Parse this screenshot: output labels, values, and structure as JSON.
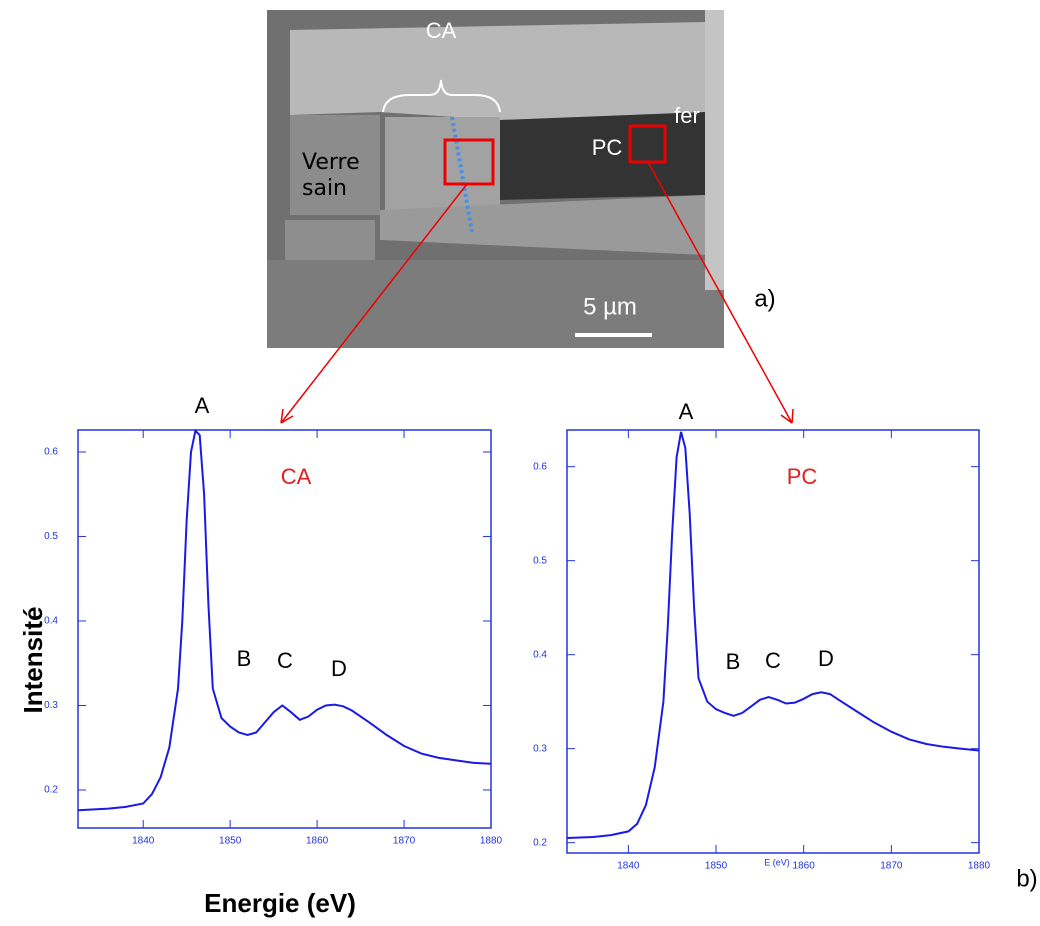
{
  "image": {
    "labels": [
      "CA",
      "Verre sain",
      "PC",
      "fer"
    ],
    "scale_bar": "5 µm"
  },
  "figure": {
    "ylabel": "Intensité",
    "xlabel": "Energie (eV)",
    "panels": [
      "a)",
      "b)"
    ]
  },
  "chart_data": [
    {
      "type": "line",
      "title": "CA",
      "annotations": [
        "A",
        "B",
        "C",
        "D"
      ],
      "x": [
        1832.5,
        1836,
        1838,
        1840,
        1841,
        1842,
        1843,
        1844,
        1844.5,
        1845,
        1845.5,
        1846,
        1846.5,
        1847,
        1847.5,
        1848,
        1849,
        1850,
        1851,
        1852,
        1853,
        1854,
        1855,
        1856,
        1857,
        1858,
        1859,
        1860,
        1861,
        1862,
        1863,
        1864,
        1866,
        1868,
        1870,
        1872,
        1874,
        1876,
        1878,
        1880
      ],
      "values": [
        0.176,
        0.178,
        0.18,
        0.184,
        0.195,
        0.215,
        0.25,
        0.32,
        0.4,
        0.52,
        0.6,
        0.625,
        0.62,
        0.55,
        0.42,
        0.32,
        0.285,
        0.275,
        0.268,
        0.265,
        0.268,
        0.28,
        0.292,
        0.3,
        0.292,
        0.283,
        0.287,
        0.295,
        0.3,
        0.301,
        0.299,
        0.294,
        0.28,
        0.265,
        0.252,
        0.243,
        0.238,
        0.235,
        0.232,
        0.231
      ],
      "color": "#1a1ae6",
      "xlim": [
        1832.5,
        1880
      ],
      "ylim": [
        0.155,
        0.626
      ],
      "xticks": [
        1840,
        1850,
        1860,
        1870,
        1880
      ],
      "yticks": [
        0.2,
        0.3,
        0.4,
        0.5,
        0.6
      ]
    },
    {
      "type": "line",
      "title": "PC",
      "xlabel": "E (eV)",
      "annotations": [
        "A",
        "B",
        "C",
        "D"
      ],
      "x": [
        1833,
        1836,
        1838,
        1840,
        1841,
        1842,
        1843,
        1844,
        1844.5,
        1845,
        1845.5,
        1846,
        1846.5,
        1847,
        1847.5,
        1848,
        1849,
        1850,
        1851,
        1852,
        1853,
        1854,
        1855,
        1856,
        1857,
        1858,
        1859,
        1860,
        1861,
        1862,
        1863,
        1864,
        1866,
        1868,
        1870,
        1872,
        1874,
        1876,
        1878,
        1880
      ],
      "values": [
        0.205,
        0.206,
        0.208,
        0.212,
        0.22,
        0.24,
        0.28,
        0.35,
        0.43,
        0.53,
        0.61,
        0.637,
        0.62,
        0.55,
        0.45,
        0.375,
        0.35,
        0.342,
        0.338,
        0.335,
        0.338,
        0.345,
        0.352,
        0.355,
        0.352,
        0.348,
        0.349,
        0.353,
        0.358,
        0.36,
        0.358,
        0.352,
        0.34,
        0.328,
        0.318,
        0.31,
        0.305,
        0.302,
        0.3,
        0.298
      ],
      "color": "#1a1ae6",
      "xlim": [
        1833,
        1880
      ],
      "ylim": [
        0.189,
        0.639
      ],
      "xticks": [
        1840,
        1850,
        1860,
        1870,
        1880
      ],
      "yticks": [
        0.2,
        0.3,
        0.4,
        0.5,
        0.6
      ]
    }
  ]
}
